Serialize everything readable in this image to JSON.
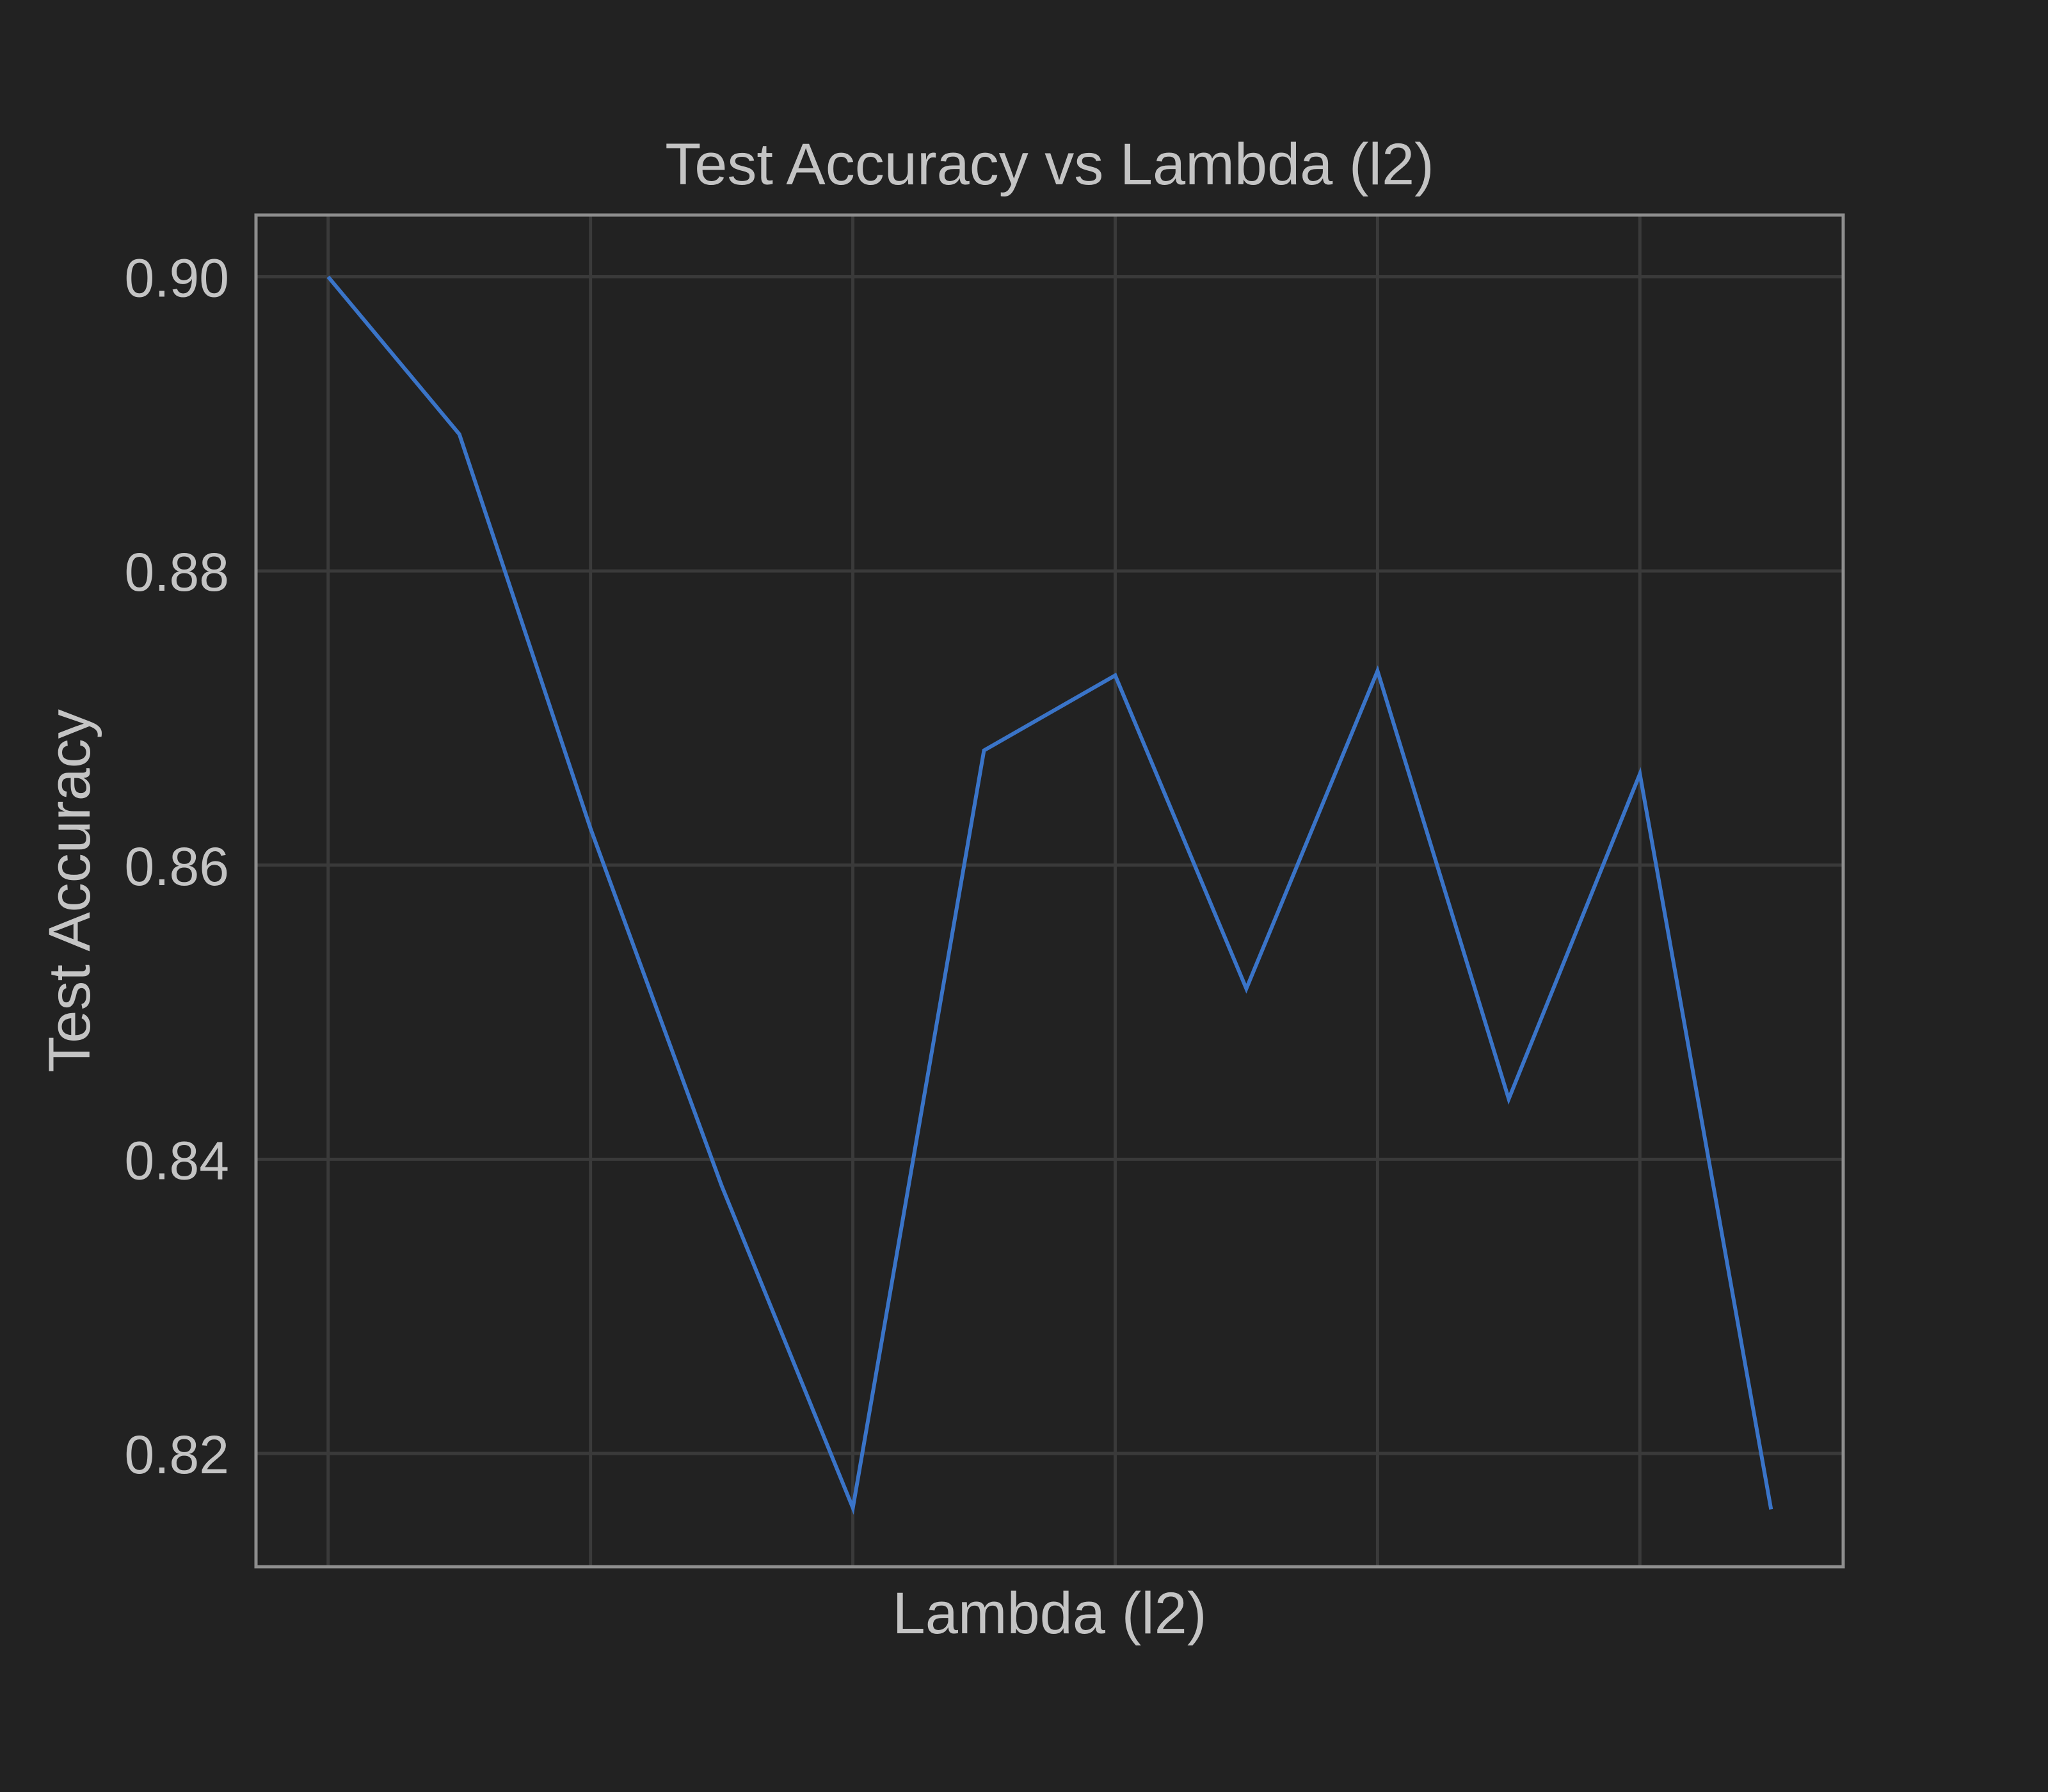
{
  "chart_data": {
    "type": "line",
    "title": "Test Accuracy vs Lambda (l2)",
    "xlabel": "Lambda (l2)",
    "ylabel": "Test Accuracy",
    "x": [
      0,
      1,
      2,
      3,
      4,
      5,
      6,
      7,
      8,
      9,
      10,
      11
    ],
    "xlim": [
      -0.55,
      11.55
    ],
    "ylim": [
      0.8123,
      0.9042
    ],
    "y_ticks": [
      0.82,
      0.84,
      0.86,
      0.88,
      0.9
    ],
    "y_tick_labels": [
      "0.82",
      "0.84",
      "0.86",
      "0.88",
      "0.90"
    ],
    "x_gridlines": [
      0,
      2,
      4,
      6,
      8,
      10
    ],
    "grid": true,
    "legend": "none",
    "series": [
      {
        "color": "#3a74c8",
        "values": [
          0.9,
          0.8893,
          0.8625,
          0.8382,
          0.8163,
          0.8678,
          0.8729,
          0.8516,
          0.8732,
          0.8441,
          0.8662,
          0.8162
        ]
      }
    ],
    "colors": {
      "background": "#222222",
      "plot_background": "#222222",
      "frame": "#8e8e8e",
      "grid": "#3a3a3a",
      "text": "#c4c4c4"
    }
  }
}
